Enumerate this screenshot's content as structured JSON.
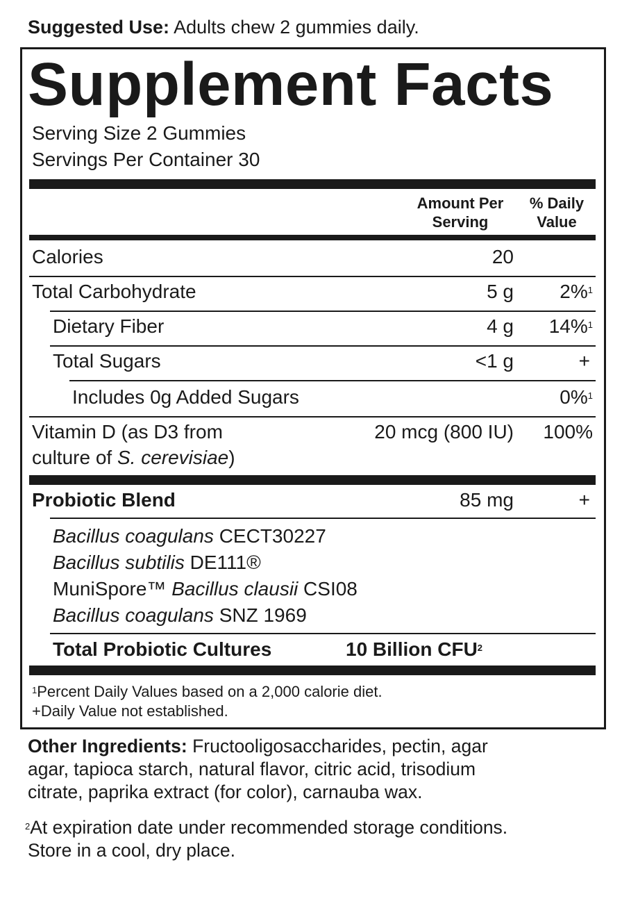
{
  "suggested_use": {
    "label": "Suggested Use:",
    "text": "Adults chew 2 gummies daily."
  },
  "title": "Supplement Facts",
  "serving_size": "Serving Size 2 Gummies",
  "servings_per_container": "Servings Per Container 30",
  "header": {
    "amount_line1": "Amount Per",
    "amount_line2": "Serving",
    "dv_line1": "% Daily",
    "dv_line2": "Value"
  },
  "rows": [
    {
      "name": "Calories",
      "amount": "20",
      "dv": ""
    },
    {
      "name": "Total Carbohydrate",
      "amount": "5 g",
      "dv": "2%",
      "note": "1"
    },
    {
      "name": "Dietary Fiber",
      "amount": "4 g",
      "dv": "14%",
      "note": "1"
    },
    {
      "name": "Total Sugars",
      "amount": "<1 g",
      "dv": "+"
    },
    {
      "name": "Includes 0g Added Sugars",
      "amount": "",
      "dv": "0%",
      "note": "1"
    },
    {
      "name_line1": "Vitamin D (as D3 from",
      "name_line2_prefix": "culture of ",
      "name_line2_italic": "S. cerevisiae",
      "name_line2_suffix": ")",
      "amount": "20 mcg (800 IU)",
      "dv": "100%"
    }
  ],
  "probiotic": {
    "name": "Probiotic Blend",
    "amount": "85 mg",
    "dv": "+",
    "strains": [
      {
        "italic": "Bacillus coagulans",
        "suffix": " CECT30227",
        "prefix": ""
      },
      {
        "italic": "Bacillus subtilis",
        "suffix": " DE111®",
        "prefix": ""
      },
      {
        "prefix": "MuniSpore™ ",
        "italic": "Bacillus clausii",
        "suffix": " CSI08"
      },
      {
        "italic": "Bacillus coagulans",
        "suffix": " SNZ 1969",
        "prefix": ""
      }
    ],
    "total_label": "Total Probiotic Cultures",
    "total_value": "10 Billion CFU",
    "total_note": "2"
  },
  "footnotes": {
    "note1_mark": "1",
    "note1": "Percent Daily Values based on a 2,000 calorie diet.",
    "note2": "+Daily Value not established."
  },
  "other_ingredients": {
    "label": "Other Ingredients:",
    "line1": "Fructooligosaccharides, pectin, agar",
    "line2": "agar, tapioca starch, natural flavor, citric acid, trisodium",
    "line3": "citrate, paprika extract (for color), carnauba wax."
  },
  "footnote2": {
    "mark": "2",
    "line1": "At expiration date under recommended storage conditions.",
    "line2": "Store in a cool, dry place."
  }
}
